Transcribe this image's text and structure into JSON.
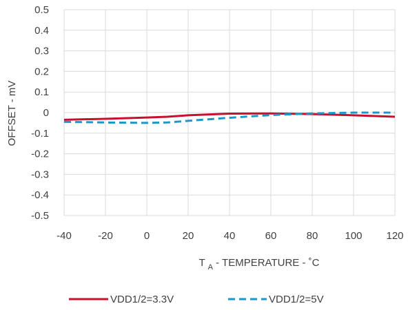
{
  "chart_data": {
    "type": "line",
    "title": "",
    "xlabel_main": "T",
    "xlabel_sub": "A",
    "xlabel_rest": " - TEMPERATURE - ˚C",
    "ylabel": "OFFSET - mV",
    "xlim": [
      -40,
      120
    ],
    "ylim": [
      -0.5,
      0.5
    ],
    "x_ticks": [
      "-40",
      "-20",
      "0",
      "20",
      "40",
      "60",
      "80",
      "100",
      "120"
    ],
    "y_ticks": [
      "0.5",
      "0.4",
      "0.3",
      "0.2",
      "0.1",
      "0",
      "-0.1",
      "-0.2",
      "-0.3",
      "-0.4",
      "-0.5"
    ],
    "grid": true,
    "legend_position": "bottom",
    "series": [
      {
        "name": "VDD1/2=3.3V",
        "color": "#C8102E",
        "style": "solid",
        "x": [
          -40,
          -20,
          0,
          10,
          20,
          40,
          60,
          80,
          100,
          120
        ],
        "y": [
          -0.035,
          -0.03,
          -0.024,
          -0.02,
          -0.013,
          -0.005,
          -0.004,
          -0.007,
          -0.013,
          -0.02
        ]
      },
      {
        "name": "VDD1/2=5V",
        "color": "#1C97C8",
        "style": "dashed",
        "x": [
          -40,
          -20,
          0,
          10,
          20,
          40,
          60,
          80,
          100,
          120
        ],
        "y": [
          -0.045,
          -0.048,
          -0.05,
          -0.048,
          -0.04,
          -0.025,
          -0.012,
          -0.004,
          0.0,
          0.0
        ]
      }
    ]
  }
}
